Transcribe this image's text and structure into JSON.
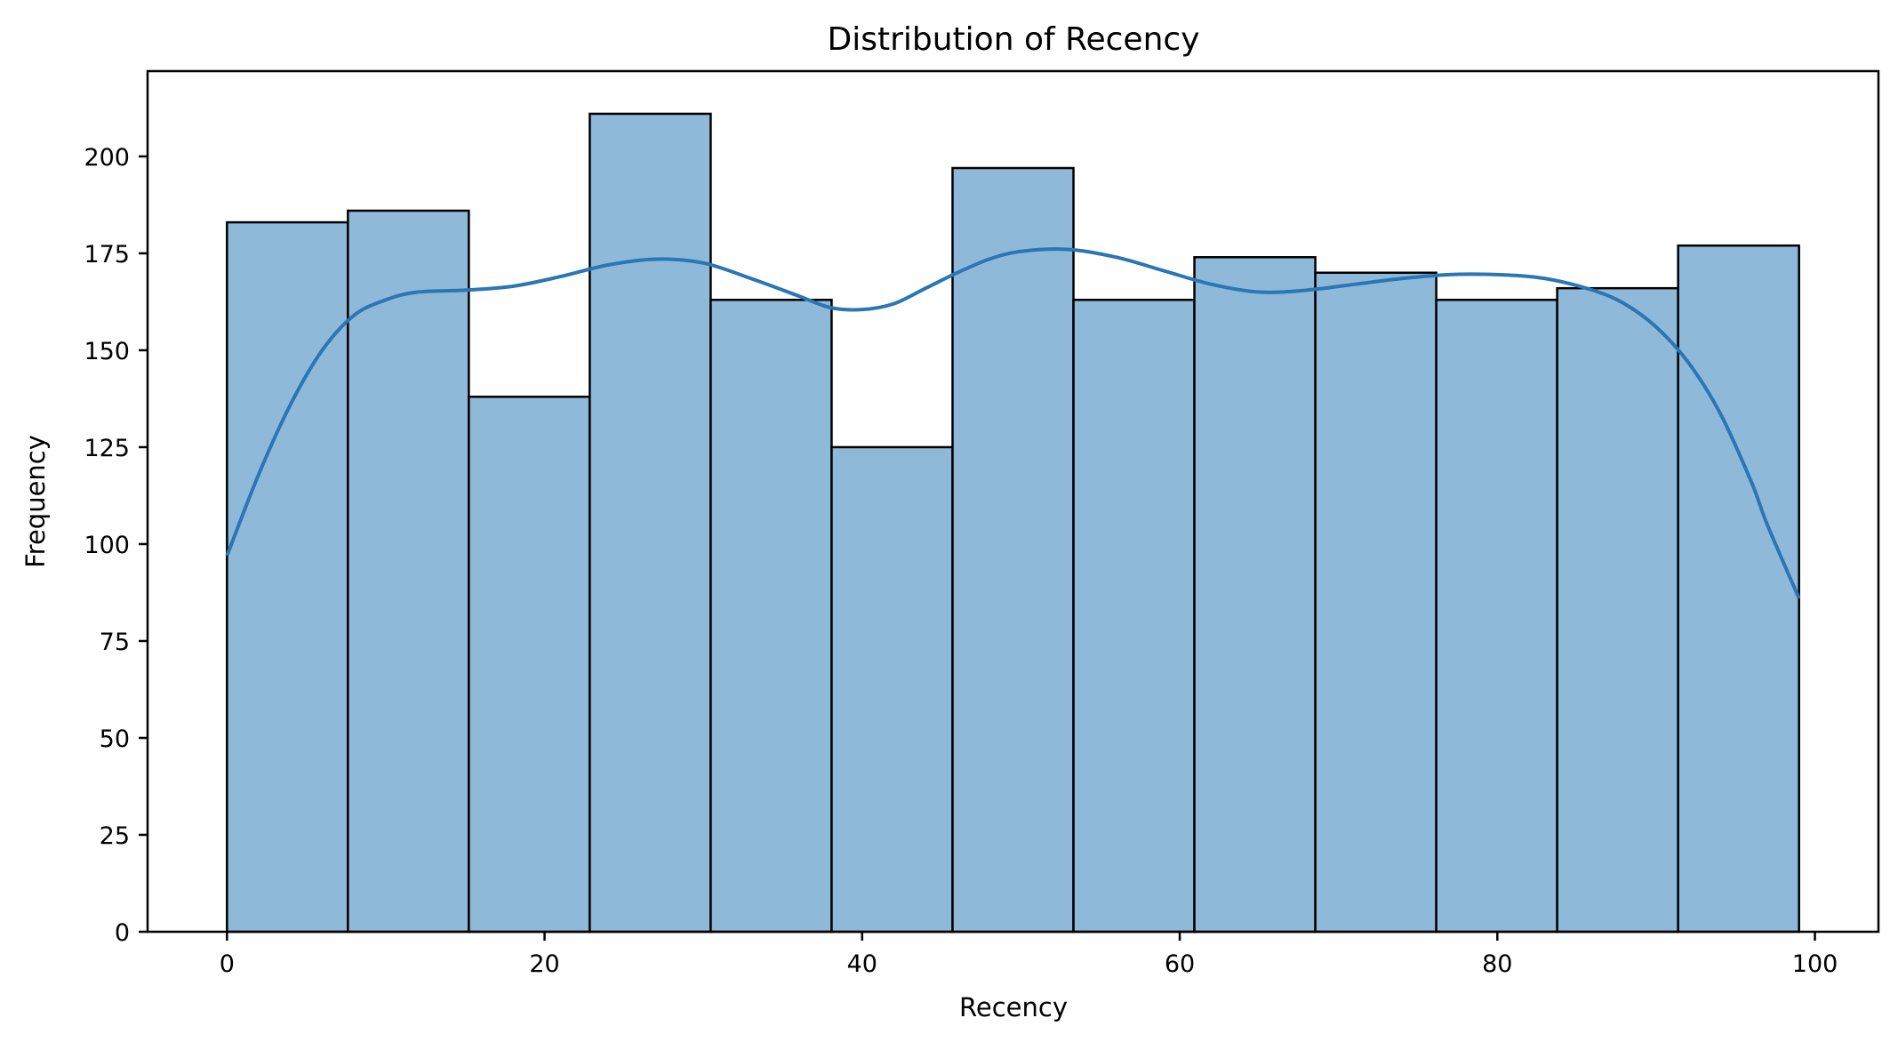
{
  "chart_data": {
    "type": "bar",
    "title": "Distribution of Recency",
    "xlabel": "Recency",
    "ylabel": "Frequency",
    "xlim": [
      -5,
      104
    ],
    "ylim": [
      0,
      222
    ],
    "xticks": [
      0,
      20,
      40,
      60,
      80,
      100
    ],
    "yticks": [
      0,
      25,
      50,
      75,
      100,
      125,
      150,
      175,
      200
    ],
    "bin_start": 0,
    "bin_end": 99,
    "counts": [
      183,
      186,
      138,
      211,
      163,
      125,
      197,
      163,
      174,
      170,
      163,
      166,
      177
    ],
    "kde": {
      "x": [
        0,
        2,
        4,
        6,
        8,
        10,
        12,
        15,
        18,
        21,
        24,
        27,
        30,
        33,
        36,
        38,
        40,
        42,
        44,
        46,
        48,
        50,
        53,
        56,
        59,
        62,
        65,
        68,
        71,
        74,
        77,
        80,
        83,
        86,
        88,
        90,
        92,
        94,
        96,
        97,
        99
      ],
      "y": [
        97,
        118,
        136,
        150,
        159,
        163,
        165,
        165.5,
        166.5,
        169,
        172,
        173.5,
        172.5,
        168.5,
        164,
        161,
        160.5,
        162,
        166,
        170,
        173.5,
        175.5,
        176,
        174,
        170.5,
        167,
        165,
        165.5,
        167,
        168.5,
        169.5,
        169.5,
        168.5,
        165.5,
        162,
        156,
        147,
        134,
        116,
        105,
        86
      ]
    },
    "colors": {
      "bar_fill": "#8fb9d9",
      "bar_edge": "#000000",
      "kde_line": "#2b76b4"
    },
    "grid": false,
    "legend": "none"
  }
}
